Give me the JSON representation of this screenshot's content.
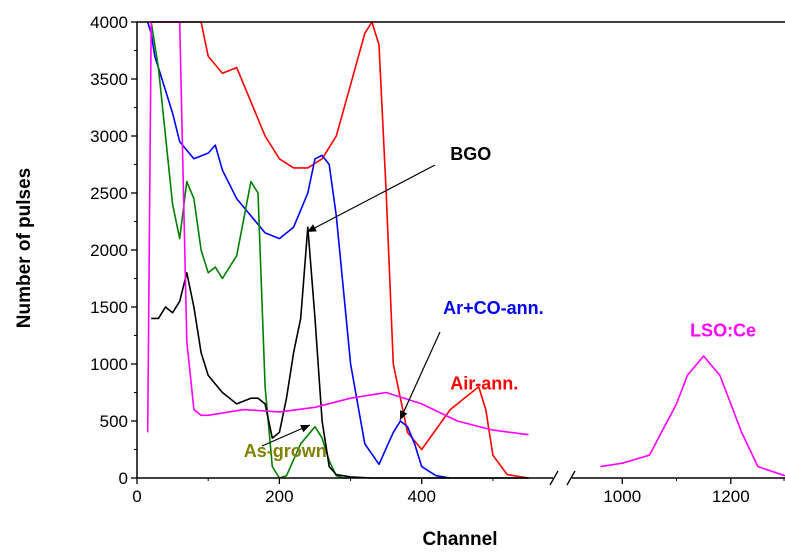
{
  "chart_data": {
    "type": "line",
    "xlabel": "Channel",
    "ylabel": "Number of pulses",
    "ylim": [
      0,
      4000
    ],
    "x_axis_break": true,
    "x_segments": [
      {
        "range": [
          0,
          590
        ],
        "ticks": [
          0,
          200,
          400
        ]
      },
      {
        "range": [
          900,
          1300
        ],
        "ticks": [
          1000,
          1200
        ]
      }
    ],
    "y_ticks": [
      0,
      500,
      1000,
      1500,
      2000,
      2500,
      3000,
      3500,
      4000
    ],
    "grid": false,
    "series": [
      {
        "name": "Air-ann.",
        "color": "#ff0000",
        "x": [
          20,
          30,
          40,
          50,
          60,
          70,
          80,
          90,
          100,
          120,
          140,
          160,
          180,
          200,
          220,
          240,
          260,
          280,
          300,
          320,
          330,
          340,
          350,
          360,
          380,
          400,
          440,
          480,
          490,
          500,
          520,
          550
        ],
        "y": [
          4000,
          4000,
          4000,
          4000,
          4000,
          4000,
          4000,
          4000,
          3700,
          3550,
          3600,
          3300,
          3000,
          2800,
          2720,
          2720,
          2800,
          3000,
          3450,
          3900,
          4000,
          3800,
          2500,
          1000,
          400,
          250,
          600,
          800,
          600,
          200,
          30,
          0
        ]
      },
      {
        "name": "Ar+CO-ann.",
        "color": "#0000ff",
        "x": [
          15,
          20,
          25,
          30,
          40,
          50,
          60,
          80,
          100,
          110,
          120,
          140,
          160,
          180,
          200,
          220,
          240,
          250,
          260,
          270,
          280,
          300,
          320,
          340,
          360,
          370,
          380,
          390,
          400,
          420,
          440
        ],
        "y": [
          4000,
          3900,
          3700,
          3600,
          3400,
          3200,
          2950,
          2800,
          2850,
          2920,
          2700,
          2450,
          2300,
          2150,
          2100,
          2200,
          2500,
          2800,
          2830,
          2750,
          2300,
          1000,
          300,
          120,
          400,
          500,
          450,
          300,
          100,
          20,
          0
        ]
      },
      {
        "name": "As-grown",
        "color": "#008000",
        "x": [
          20,
          25,
          30,
          40,
          50,
          60,
          70,
          80,
          90,
          100,
          110,
          120,
          140,
          160,
          170,
          180,
          190,
          200,
          210,
          230,
          250,
          260,
          270,
          280,
          290,
          300
        ],
        "y": [
          4000,
          3800,
          3600,
          3000,
          2400,
          2100,
          2600,
          2450,
          2000,
          1800,
          1850,
          1750,
          1950,
          2600,
          2500,
          800,
          100,
          0,
          20,
          300,
          450,
          350,
          150,
          20,
          0,
          0
        ]
      },
      {
        "name": "BGO",
        "color": "#000000",
        "x": [
          20,
          30,
          40,
          50,
          60,
          70,
          80,
          90,
          100,
          120,
          140,
          160,
          170,
          180,
          190,
          200,
          210,
          220,
          230,
          240,
          250,
          260,
          270,
          280,
          300,
          330,
          400,
          500,
          550
        ],
        "y": [
          1400,
          1400,
          1500,
          1450,
          1550,
          1800,
          1500,
          1100,
          900,
          750,
          650,
          700,
          700,
          650,
          350,
          400,
          700,
          1100,
          1400,
          2200,
          1400,
          500,
          100,
          30,
          10,
          0,
          0,
          0,
          0
        ]
      },
      {
        "name": "LSO:Ce",
        "color": "#ff00ff",
        "x": [
          15,
          20,
          40,
          60,
          70,
          80,
          90,
          100,
          150,
          200,
          250,
          300,
          350,
          400,
          450,
          500,
          550,
          960,
          1000,
          1050,
          1100,
          1120,
          1150,
          1180,
          1200,
          1220,
          1250,
          1300
        ],
        "y": [
          400,
          4000,
          4000,
          4000,
          1200,
          600,
          550,
          550,
          600,
          580,
          620,
          700,
          750,
          650,
          500,
          420,
          380,
          100,
          130,
          200,
          650,
          900,
          1070,
          900,
          650,
          400,
          100,
          20
        ]
      }
    ],
    "annotations": [
      {
        "text": "BGO",
        "color": "#000000",
        "x": 440,
        "y": 2790
      },
      {
        "text": "Ar+CO-ann.",
        "color": "#0000ff",
        "x": 430,
        "y": 1440
      },
      {
        "text": "Air-ann.",
        "color": "#ff0000",
        "x": 440,
        "y": 775
      },
      {
        "text": "LSO:Ce",
        "color": "#ff00ff",
        "x": 1125,
        "y": 1240
      },
      {
        "text": "As-grown",
        "color": "#808000",
        "x": 150,
        "y": 185
      }
    ]
  }
}
